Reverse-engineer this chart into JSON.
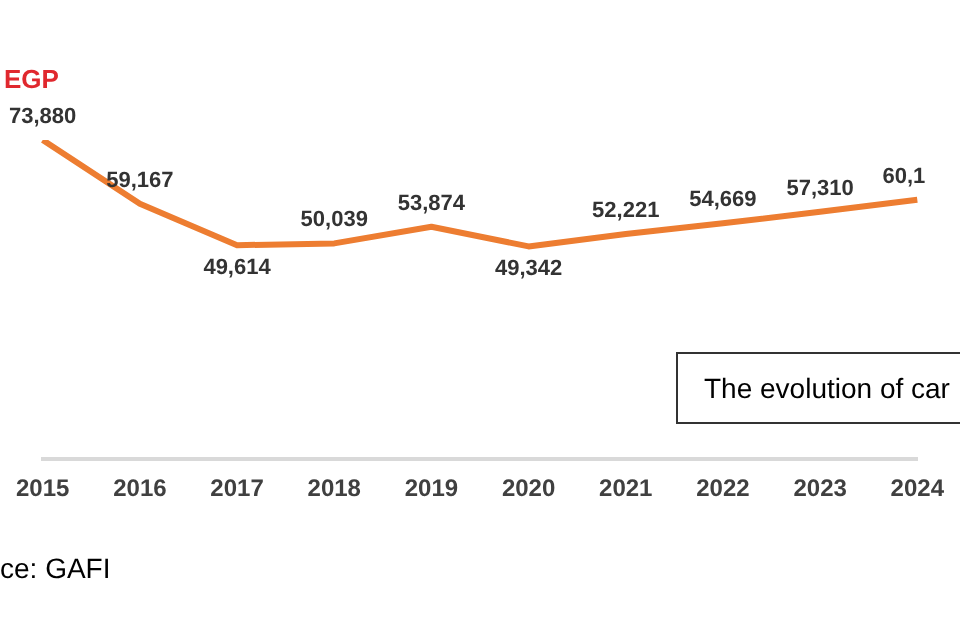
{
  "chart_data": {
    "type": "line",
    "ylabel": "EGP",
    "categories": [
      "2015",
      "2016",
      "2017",
      "2018",
      "2019",
      "2020",
      "2021",
      "2022",
      "2023",
      "2024"
    ],
    "series": [
      {
        "color": "#ed7d31",
        "values": [
          73880,
          59167,
          49614,
          50039,
          53874,
          49342,
          52221,
          54669,
          57310,
          60100
        ],
        "value_labels": [
          "73,880",
          "59,167",
          "49,614",
          "50,039",
          "53,874",
          "49,342",
          "52,221",
          "54,669",
          "57,310",
          null
        ]
      }
    ],
    "annotations": [
      "The evolution of car",
      "ce: GAFI",
      {
        "text": "60,1",
        "x": "2024",
        "y": 60100
      }
    ],
    "grid": false,
    "legend": false,
    "marker": "none",
    "line_style": "solid"
  }
}
